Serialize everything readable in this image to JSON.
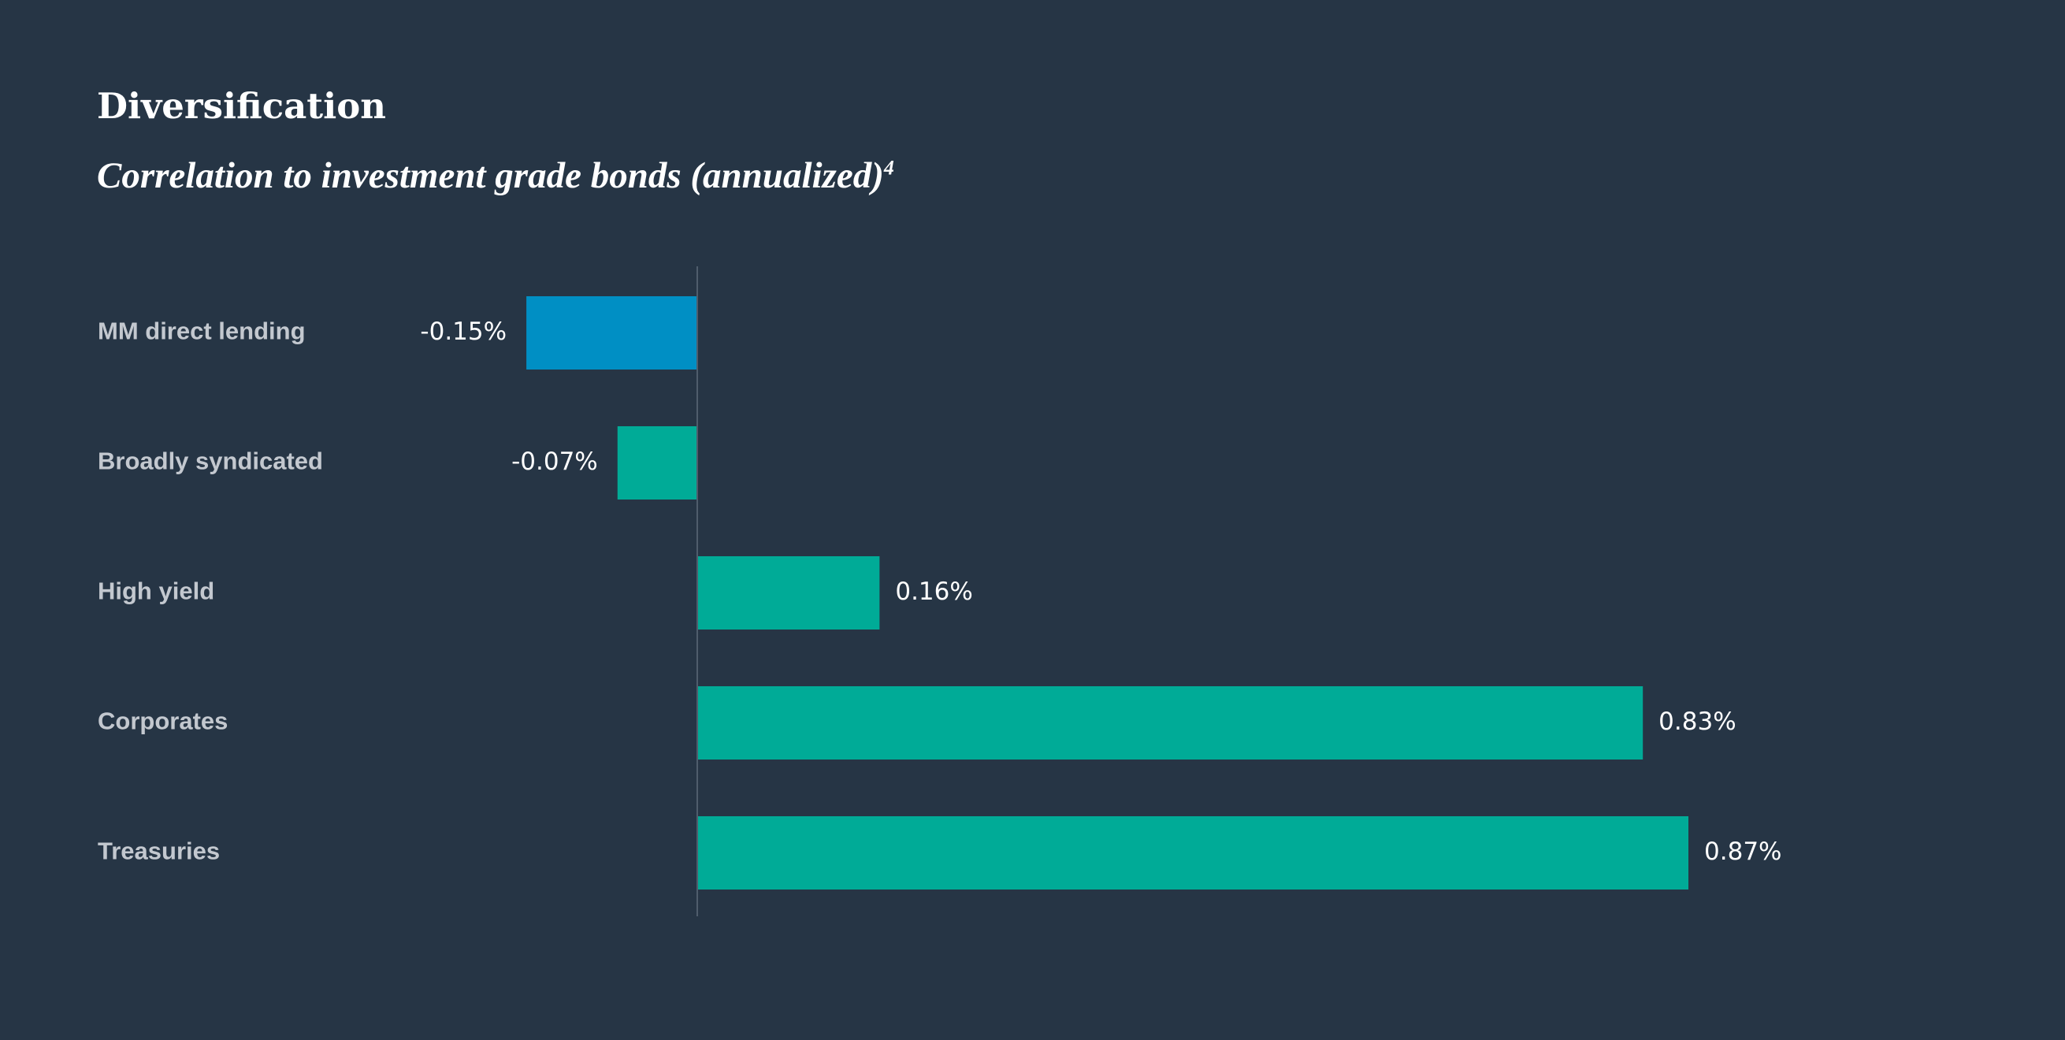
{
  "title": "Diversification",
  "subtitle": {
    "text": "Correlation to investment grade bonds (annualized)",
    "footnote": "4"
  },
  "chart_data": {
    "type": "bar",
    "orientation": "horizontal",
    "title": "Diversification",
    "subtitle": "Correlation to investment grade bonds (annualized)4",
    "categories": [
      "MM direct lending",
      "Broadly syndicated",
      "High yield",
      "Corporates",
      "Treasuries"
    ],
    "values": [
      -0.15,
      -0.07,
      0.16,
      0.83,
      0.87
    ],
    "value_labels": [
      "-0.15%",
      "-0.07%",
      "0.16%",
      "0.83%",
      "0.87%"
    ],
    "bar_colors": [
      "#008fc4",
      "#00ab97",
      "#00ab97",
      "#00ab97",
      "#00ab97"
    ],
    "xlim": [
      -0.15,
      0.87
    ],
    "grid": false,
    "legend": "none"
  },
  "colors": {
    "background": "#263545",
    "highlight_bar": "#008fc4",
    "bar": "#00ab97",
    "category_text": "#c3c8cf",
    "value_text": "#ffffff",
    "zero_line": "#4f5d6c"
  }
}
